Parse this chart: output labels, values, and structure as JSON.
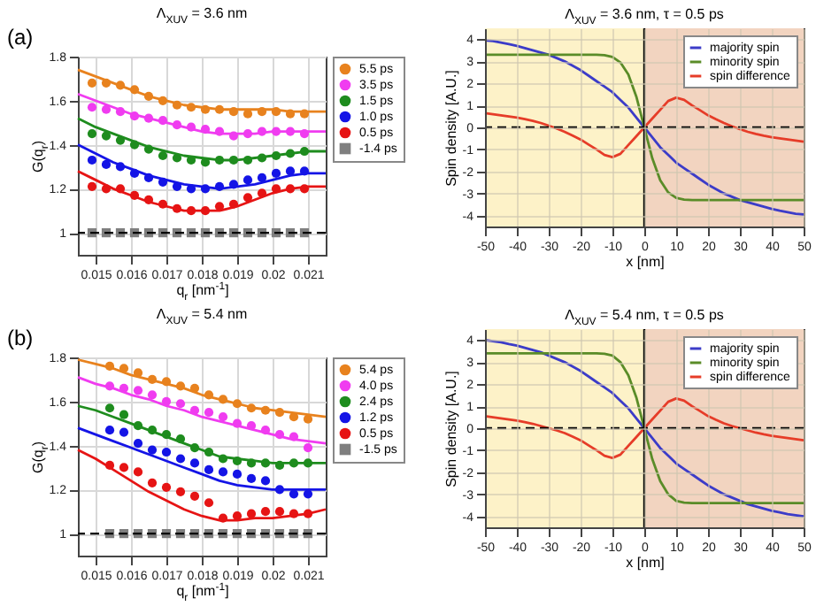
{
  "chart_data": [
    {
      "type": "scatter",
      "title": "Λ$_{XUV}$ = 3.6 nm",
      "xlabel": "q$_{r}$ [nm$^{-1}$]",
      "ylabel": "G(q$_{r}$)",
      "annotations": [
        "(a)"
      ],
      "marker": "circle",
      "grid": true,
      "legend": "right",
      "x": [
        0.0149,
        0.0153,
        0.0157,
        0.0161,
        0.0165,
        0.0169,
        0.0173,
        0.0177,
        0.0181,
        0.0185,
        0.0189,
        0.0193,
        0.0197,
        0.0201,
        0.0205,
        0.0209
      ],
      "xlim": [
        0.0145,
        0.0215
      ],
      "xticks": [
        0.015,
        0.016,
        0.017,
        0.018,
        0.019,
        0.02,
        0.021
      ],
      "ylim": [
        0.9,
        1.8
      ],
      "yticks": [
        1,
        1.2,
        1.4,
        1.6,
        1.8
      ],
      "ref_lines": [
        {
          "axis": "y",
          "value": 1,
          "color": "#000000",
          "line_style": "dashed"
        }
      ],
      "series": [
        {
          "name": "5.5 ps",
          "color": "#e8821e",
          "values": [
            1.68,
            1.68,
            1.67,
            1.65,
            1.62,
            1.6,
            1.58,
            1.57,
            1.56,
            1.56,
            1.55,
            1.54,
            1.55,
            1.55,
            1.54,
            1.54
          ]
        },
        {
          "name": "3.5 ps",
          "color": "#f03cf0",
          "values": [
            1.57,
            1.56,
            1.55,
            1.53,
            1.52,
            1.51,
            1.49,
            1.48,
            1.47,
            1.46,
            1.44,
            1.45,
            1.46,
            1.46,
            1.46,
            1.45
          ]
        },
        {
          "name": "1.5 ps",
          "color": "#1e8c1e",
          "values": [
            1.45,
            1.44,
            1.42,
            1.4,
            1.38,
            1.35,
            1.34,
            1.33,
            1.32,
            1.33,
            1.33,
            1.33,
            1.34,
            1.35,
            1.36,
            1.37
          ]
        },
        {
          "name": "1.0 ps",
          "color": "#1414e6",
          "values": [
            1.33,
            1.31,
            1.3,
            1.27,
            1.25,
            1.23,
            1.21,
            1.2,
            1.2,
            1.21,
            1.22,
            1.24,
            1.25,
            1.27,
            1.28,
            1.28
          ]
        },
        {
          "name": "0.5 ps",
          "color": "#e61414",
          "values": [
            1.21,
            1.2,
            1.2,
            1.17,
            1.15,
            1.13,
            1.11,
            1.1,
            1.1,
            1.12,
            1.13,
            1.16,
            1.18,
            1.2,
            1.2,
            1.2
          ]
        },
        {
          "name": "-1.4 ps",
          "color": "#7f7f7f",
          "marker": "square",
          "values": [
            1,
            1,
            1,
            1,
            1,
            1,
            1,
            1,
            1,
            1,
            1,
            1,
            1,
            1,
            1,
            1
          ]
        },
        {
          "type": "line",
          "marker": "none",
          "color": "#e8821e",
          "x": [
            0.0145,
            0.015,
            0.0155,
            0.016,
            0.0165,
            0.017,
            0.0175,
            0.018,
            0.0185,
            0.019,
            0.0195,
            0.02,
            0.0205,
            0.021,
            0.0215
          ],
          "values": [
            1.74,
            1.71,
            1.68,
            1.65,
            1.62,
            1.6,
            1.58,
            1.57,
            1.56,
            1.56,
            1.56,
            1.56,
            1.55,
            1.55,
            1.55
          ]
        },
        {
          "type": "line",
          "marker": "none",
          "color": "#f03cf0",
          "x": [
            0.0145,
            0.015,
            0.0155,
            0.016,
            0.0165,
            0.017,
            0.0175,
            0.018,
            0.0185,
            0.019,
            0.0195,
            0.02,
            0.0205,
            0.021,
            0.0215
          ],
          "values": [
            1.63,
            1.6,
            1.57,
            1.54,
            1.52,
            1.5,
            1.48,
            1.46,
            1.45,
            1.45,
            1.45,
            1.46,
            1.46,
            1.46,
            1.46
          ]
        },
        {
          "type": "line",
          "marker": "none",
          "color": "#1e8c1e",
          "x": [
            0.0145,
            0.015,
            0.0155,
            0.016,
            0.0165,
            0.017,
            0.0175,
            0.018,
            0.0185,
            0.019,
            0.0195,
            0.02,
            0.0205,
            0.021,
            0.0215
          ],
          "values": [
            1.52,
            1.48,
            1.45,
            1.42,
            1.39,
            1.37,
            1.35,
            1.34,
            1.33,
            1.33,
            1.34,
            1.35,
            1.36,
            1.37,
            1.37
          ]
        },
        {
          "type": "line",
          "marker": "none",
          "color": "#1414e6",
          "x": [
            0.0145,
            0.015,
            0.0155,
            0.016,
            0.0165,
            0.017,
            0.0175,
            0.018,
            0.0185,
            0.019,
            0.0195,
            0.02,
            0.0205,
            0.021,
            0.0215
          ],
          "values": [
            1.4,
            1.36,
            1.32,
            1.29,
            1.26,
            1.24,
            1.22,
            1.21,
            1.2,
            1.21,
            1.22,
            1.24,
            1.26,
            1.27,
            1.27
          ]
        },
        {
          "type": "line",
          "marker": "none",
          "color": "#e61414",
          "x": [
            0.0145,
            0.015,
            0.0155,
            0.016,
            0.0165,
            0.017,
            0.0175,
            0.018,
            0.0185,
            0.019,
            0.0195,
            0.02,
            0.0205,
            0.021,
            0.0215
          ],
          "values": [
            1.28,
            1.24,
            1.2,
            1.17,
            1.14,
            1.12,
            1.1,
            1.1,
            1.1,
            1.12,
            1.15,
            1.18,
            1.2,
            1.21,
            1.21
          ]
        }
      ]
    },
    {
      "type": "line",
      "title": "Λ$_{XUV}$ = 3.6 nm, τ = 0.5 ps",
      "xlabel": "x [nm]",
      "ylabel": "Spin density [A.U.]",
      "grid": true,
      "legend": "top right",
      "x": [
        -50,
        -47.5,
        -45,
        -42.5,
        -40,
        -37.5,
        -35,
        -32.5,
        -30,
        -27.5,
        -25,
        -22.5,
        -20,
        -17.5,
        -15,
        -12.5,
        -10,
        -7.5,
        -5,
        -2.5,
        0,
        2.5,
        5,
        7.5,
        10,
        12.5,
        15,
        17.5,
        20,
        22.5,
        25,
        27.5,
        30,
        32.5,
        35,
        37.5,
        40,
        42.5,
        45,
        47.5,
        50
      ],
      "xlim": [
        -50,
        50
      ],
      "xticks": [
        -50,
        -40,
        -30,
        -20,
        -10,
        0,
        10,
        20,
        30,
        40,
        50
      ],
      "ylim": [
        -4.5,
        4.5
      ],
      "yticks": [
        -4,
        -3,
        -2,
        -1,
        0,
        1,
        2,
        3,
        4
      ],
      "bands": [
        {
          "axis": "x",
          "from": -50,
          "to": 0,
          "color": "#fdf2c8"
        },
        {
          "axis": "x",
          "from": 0,
          "to": 50,
          "color": "#f2d4c0"
        }
      ],
      "ref_lines": [
        {
          "axis": "y",
          "value": 0,
          "color": "#000000",
          "line_style": "dashed"
        },
        {
          "axis": "x",
          "value": 0,
          "color": "#000000",
          "line_style": "solid"
        }
      ],
      "series": [
        {
          "name": "majority spin",
          "color": "#3c3cc8",
          "values": [
            3.95,
            3.92,
            3.85,
            3.78,
            3.7,
            3.6,
            3.5,
            3.4,
            3.3,
            3.15,
            3.0,
            2.8,
            2.6,
            2.35,
            2.1,
            1.85,
            1.6,
            1.25,
            0.9,
            0.45,
            0,
            -0.45,
            -0.9,
            -1.25,
            -1.6,
            -1.85,
            -2.1,
            -2.35,
            -2.6,
            -2.8,
            -3.0,
            -3.15,
            -3.3,
            -3.4,
            -3.5,
            -3.6,
            -3.7,
            -3.78,
            -3.85,
            -3.92,
            -3.95
          ]
        },
        {
          "name": "minority spin",
          "color": "#5a8c28",
          "values": [
            3.3,
            3.3,
            3.3,
            3.3,
            3.3,
            3.3,
            3.3,
            3.3,
            3.3,
            3.3,
            3.3,
            3.3,
            3.3,
            3.3,
            3.3,
            3.28,
            3.2,
            2.95,
            2.4,
            1.4,
            0,
            -1.4,
            -2.4,
            -2.95,
            -3.2,
            -3.28,
            -3.3,
            -3.3,
            -3.3,
            -3.3,
            -3.3,
            -3.3,
            -3.3,
            -3.3,
            -3.3,
            -3.3,
            -3.3,
            -3.3,
            -3.3,
            -3.3,
            -3.3
          ]
        },
        {
          "name": "spin difference",
          "color": "#e63c28",
          "values": [
            0.65,
            0.6,
            0.55,
            0.5,
            0.45,
            0.38,
            0.3,
            0.2,
            0.08,
            -0.05,
            -0.2,
            -0.37,
            -0.55,
            -0.78,
            -1.0,
            -1.25,
            -1.35,
            -1.2,
            -0.8,
            -0.4,
            0,
            0.4,
            0.8,
            1.2,
            1.35,
            1.25,
            1.0,
            0.78,
            0.55,
            0.37,
            0.2,
            0.05,
            -0.08,
            -0.2,
            -0.3,
            -0.38,
            -0.45,
            -0.5,
            -0.55,
            -0.6,
            -0.65
          ]
        }
      ]
    },
    {
      "type": "scatter",
      "title": "Λ$_{XUV}$ = 5.4 nm",
      "xlabel": "q$_{r}$ [nm$^{-1}$]",
      "ylabel": "G(q$_{r}$)",
      "annotations": [
        "(b)"
      ],
      "marker": "circle",
      "grid": true,
      "legend": "right",
      "x": [
        0.0154,
        0.0158,
        0.0162,
        0.0166,
        0.017,
        0.0174,
        0.0178,
        0.0182,
        0.0186,
        0.019,
        0.0194,
        0.0198,
        0.0202,
        0.0206,
        0.021
      ],
      "xlim": [
        0.0145,
        0.0215
      ],
      "xticks": [
        0.015,
        0.016,
        0.017,
        0.018,
        0.019,
        0.02,
        0.021
      ],
      "ylim": [
        0.9,
        1.8
      ],
      "yticks": [
        1,
        1.2,
        1.4,
        1.6,
        1.8
      ],
      "ref_lines": [
        {
          "axis": "y",
          "value": 1,
          "color": "#000000",
          "line_style": "dashed"
        }
      ],
      "series": [
        {
          "name": "5.4 ps",
          "color": "#e8821e",
          "values": [
            1.76,
            1.75,
            1.73,
            1.7,
            1.69,
            1.67,
            1.66,
            1.63,
            1.61,
            1.59,
            1.57,
            1.56,
            1.55,
            1.53,
            1.52
          ]
        },
        {
          "name": "4.0 ps",
          "color": "#f03cf0",
          "values": [
            1.67,
            1.66,
            1.65,
            1.63,
            1.6,
            1.59,
            1.56,
            1.55,
            1.53,
            1.5,
            1.49,
            1.47,
            1.45,
            1.44,
            1.39
          ]
        },
        {
          "name": "2.4 ps",
          "color": "#1e8c1e",
          "values": [
            1.57,
            1.54,
            1.49,
            1.47,
            1.45,
            1.43,
            1.39,
            1.37,
            1.34,
            1.33,
            1.32,
            1.32,
            1.31,
            1.32,
            1.32
          ]
        },
        {
          "name": "1.2 ps",
          "color": "#1414e6",
          "values": [
            1.47,
            1.46,
            1.41,
            1.38,
            1.37,
            1.34,
            1.32,
            1.29,
            1.28,
            1.27,
            1.25,
            1.24,
            1.2,
            1.18,
            1.18
          ]
        },
        {
          "name": "0.5 ps",
          "color": "#e61414",
          "values": [
            1.31,
            1.3,
            1.28,
            1.23,
            1.21,
            1.19,
            1.17,
            1.14,
            1.07,
            1.08,
            1.09,
            1.1,
            1.1,
            1.09,
            1.09
          ]
        },
        {
          "name": "-1.5 ps",
          "color": "#7f7f7f",
          "marker": "square",
          "values": [
            1,
            1,
            1,
            1,
            1,
            1,
            1,
            1,
            1,
            1,
            1,
            1,
            1,
            1,
            1
          ]
        },
        {
          "type": "line",
          "marker": "none",
          "color": "#e8821e",
          "x": [
            0.0145,
            0.015,
            0.0155,
            0.016,
            0.0165,
            0.017,
            0.0175,
            0.018,
            0.0185,
            0.019,
            0.0195,
            0.02,
            0.0205,
            0.021,
            0.0215
          ],
          "values": [
            1.79,
            1.77,
            1.75,
            1.72,
            1.7,
            1.68,
            1.66,
            1.63,
            1.61,
            1.59,
            1.57,
            1.56,
            1.55,
            1.54,
            1.53
          ]
        },
        {
          "type": "line",
          "marker": "none",
          "color": "#f03cf0",
          "x": [
            0.0145,
            0.015,
            0.0155,
            0.016,
            0.0165,
            0.017,
            0.0175,
            0.018,
            0.0185,
            0.019,
            0.0195,
            0.02,
            0.0205,
            0.021,
            0.0215
          ],
          "values": [
            1.71,
            1.68,
            1.66,
            1.63,
            1.61,
            1.58,
            1.56,
            1.53,
            1.51,
            1.49,
            1.47,
            1.45,
            1.43,
            1.42,
            1.41
          ]
        },
        {
          "type": "line",
          "marker": "none",
          "color": "#1e8c1e",
          "x": [
            0.0145,
            0.015,
            0.0155,
            0.016,
            0.0165,
            0.017,
            0.0175,
            0.018,
            0.0185,
            0.019,
            0.0195,
            0.02,
            0.0205,
            0.021,
            0.0215
          ],
          "values": [
            1.58,
            1.56,
            1.53,
            1.5,
            1.47,
            1.44,
            1.41,
            1.38,
            1.35,
            1.34,
            1.33,
            1.32,
            1.32,
            1.32,
            1.32
          ]
        },
        {
          "type": "line",
          "marker": "none",
          "color": "#1414e6",
          "x": [
            0.0145,
            0.015,
            0.0155,
            0.016,
            0.0165,
            0.017,
            0.0175,
            0.018,
            0.0185,
            0.019,
            0.0195,
            0.02,
            0.0205,
            0.021,
            0.0215
          ],
          "values": [
            1.48,
            1.45,
            1.42,
            1.39,
            1.36,
            1.33,
            1.3,
            1.27,
            1.24,
            1.22,
            1.21,
            1.2,
            1.2,
            1.2,
            1.2
          ]
        },
        {
          "type": "line",
          "marker": "none",
          "color": "#e61414",
          "x": [
            0.0145,
            0.015,
            0.0155,
            0.016,
            0.0165,
            0.017,
            0.0175,
            0.018,
            0.0185,
            0.019,
            0.0195,
            0.02,
            0.0205,
            0.021,
            0.0215
          ],
          "values": [
            1.38,
            1.34,
            1.29,
            1.24,
            1.19,
            1.15,
            1.11,
            1.08,
            1.06,
            1.06,
            1.07,
            1.07,
            1.08,
            1.09,
            1.11
          ]
        }
      ]
    },
    {
      "type": "line",
      "title": "Λ$_{XUV}$ = 5.4 nm, τ = 0.5 ps",
      "xlabel": "x [nm]",
      "ylabel": "Spin density [A.U.]",
      "grid": true,
      "legend": "top right",
      "x": [
        -50,
        -47.5,
        -45,
        -42.5,
        -40,
        -37.5,
        -35,
        -32.5,
        -30,
        -27.5,
        -25,
        -22.5,
        -20,
        -17.5,
        -15,
        -12.5,
        -10,
        -7.5,
        -5,
        -2.5,
        0,
        2.5,
        5,
        7.5,
        10,
        12.5,
        15,
        17.5,
        20,
        22.5,
        25,
        27.5,
        30,
        32.5,
        35,
        37.5,
        40,
        42.5,
        45,
        47.5,
        50
      ],
      "xlim": [
        -50,
        50
      ],
      "xticks": [
        -50,
        -40,
        -30,
        -20,
        -10,
        0,
        10,
        20,
        30,
        40,
        50
      ],
      "ylim": [
        -4.5,
        4.5
      ],
      "yticks": [
        -4,
        -3,
        -2,
        -1,
        0,
        1,
        2,
        3,
        4
      ],
      "bands": [
        {
          "axis": "x",
          "from": -50,
          "to": 0,
          "color": "#fdf2c8"
        },
        {
          "axis": "x",
          "from": 0,
          "to": 50,
          "color": "#f2d4c0"
        }
      ],
      "ref_lines": [
        {
          "axis": "y",
          "value": 0,
          "color": "#000000",
          "line_style": "dashed"
        },
        {
          "axis": "x",
          "value": 0,
          "color": "#000000",
          "line_style": "solid"
        }
      ],
      "series": [
        {
          "name": "majority spin",
          "color": "#3c3cc8",
          "values": [
            4.0,
            3.95,
            3.9,
            3.82,
            3.75,
            3.65,
            3.55,
            3.45,
            3.3,
            3.15,
            3.0,
            2.8,
            2.6,
            2.35,
            2.1,
            1.85,
            1.6,
            1.25,
            0.9,
            0.45,
            0,
            -0.45,
            -0.9,
            -1.25,
            -1.6,
            -1.85,
            -2.1,
            -2.35,
            -2.6,
            -2.8,
            -3.0,
            -3.15,
            -3.3,
            -3.45,
            -3.55,
            -3.65,
            -3.75,
            -3.82,
            -3.9,
            -3.95,
            -4.0
          ]
        },
        {
          "name": "minority spin",
          "color": "#5a8c28",
          "values": [
            3.4,
            3.4,
            3.4,
            3.4,
            3.4,
            3.4,
            3.4,
            3.4,
            3.4,
            3.4,
            3.4,
            3.4,
            3.4,
            3.4,
            3.4,
            3.38,
            3.3,
            3.0,
            2.4,
            1.4,
            0,
            -1.4,
            -2.4,
            -3.0,
            -3.3,
            -3.38,
            -3.4,
            -3.4,
            -3.4,
            -3.4,
            -3.4,
            -3.4,
            -3.4,
            -3.4,
            -3.4,
            -3.4,
            -3.4,
            -3.4,
            -3.4,
            -3.4,
            -3.4
          ]
        },
        {
          "name": "spin difference",
          "color": "#e63c28",
          "values": [
            0.55,
            0.5,
            0.45,
            0.4,
            0.35,
            0.28,
            0.2,
            0.1,
            0,
            -0.1,
            -0.22,
            -0.38,
            -0.55,
            -0.78,
            -1.0,
            -1.25,
            -1.35,
            -1.2,
            -0.8,
            -0.4,
            0,
            0.4,
            0.8,
            1.2,
            1.35,
            1.25,
            1.0,
            0.78,
            0.55,
            0.38,
            0.22,
            0.1,
            0,
            -0.1,
            -0.2,
            -0.28,
            -0.35,
            -0.4,
            -0.45,
            -0.5,
            -0.55
          ]
        }
      ]
    }
  ]
}
